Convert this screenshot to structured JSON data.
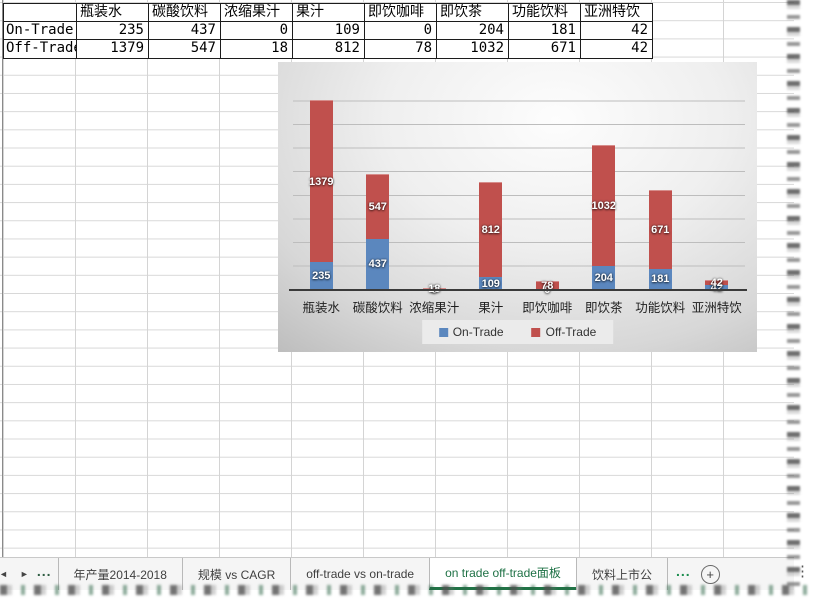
{
  "table": {
    "corner": "",
    "columns": [
      "瓶装水",
      "碳酸饮料",
      "浓缩果汁",
      "果汁",
      "即饮咖啡",
      "即饮茶",
      "功能饮料",
      "亚洲特饮"
    ],
    "rows": [
      {
        "label": "On-Trade",
        "values": [
          "235",
          "437",
          "0",
          "109",
          "0",
          "204",
          "181",
          "42"
        ]
      },
      {
        "label": "Off-Trade",
        "values": [
          "1379",
          "547",
          "18",
          "812",
          "78",
          "1032",
          "671",
          "42"
        ]
      }
    ]
  },
  "chart_data": {
    "type": "bar",
    "stacked": true,
    "title": "",
    "xlabel": "",
    "ylabel": "",
    "categories": [
      "瓶装水",
      "碳酸饮料",
      "浓缩果汁",
      "果汁",
      "即饮咖啡",
      "即饮茶",
      "功能饮料",
      "亚洲特饮"
    ],
    "series": [
      {
        "name": "On-Trade",
        "color": "#5b87be",
        "values": [
          235,
          437,
          0,
          109,
          0,
          204,
          181,
          42
        ]
      },
      {
        "name": "Off-Trade",
        "color": "#c0504d",
        "values": [
          1379,
          547,
          18,
          812,
          78,
          1032,
          671,
          42
        ]
      }
    ],
    "ylim": [
      0,
      1800
    ],
    "gridline_step": 200,
    "grid": true,
    "legend_position": "bottom",
    "data_labels": true
  },
  "tab_bar": {
    "nav": {
      "left": "◄",
      "right": "►",
      "overflow_left": "...",
      "overflow_right": "...",
      "add": "+",
      "more": "⋮"
    },
    "tabs": [
      {
        "label": "年产量2014-2018",
        "active": false
      },
      {
        "label": "规模 vs CAGR",
        "active": false
      },
      {
        "label": "off-trade vs on-trade",
        "active": false
      },
      {
        "label": "on trade off-trade面板",
        "active": true
      },
      {
        "label": "饮料上市公",
        "active": false
      }
    ]
  },
  "colors": {
    "accent_blue": "#5b87be",
    "accent_red": "#c0504d",
    "active_tab_green": "#217346",
    "grid_line": "#d4d4d4",
    "table_border": "#1c1c1c",
    "axis_line": "#3a3a3a",
    "legend_bg": "#ebebeb"
  }
}
